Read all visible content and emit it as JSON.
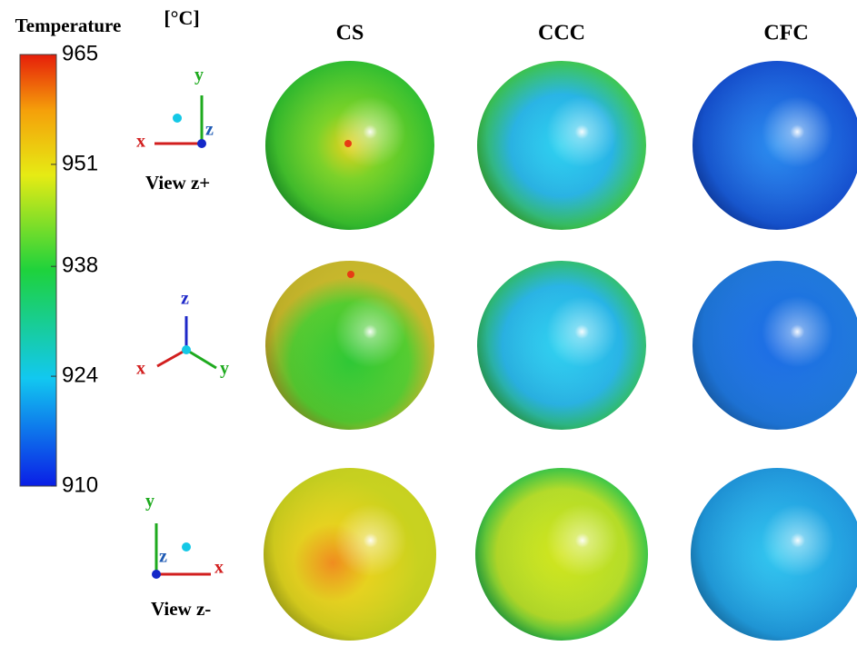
{
  "colorbar": {
    "title": "Temperature",
    "unit": "[°C]",
    "ticks": [
      965,
      951,
      938,
      924,
      910
    ]
  },
  "columns": [
    "CS",
    "CCC",
    "CFC"
  ],
  "rows": [
    {
      "view": "View z+",
      "axes": {
        "x": "x",
        "y": "y",
        "z": "z"
      }
    },
    {
      "axes": {
        "x": "x",
        "y": "y",
        "z": "z"
      }
    },
    {
      "view": "View z-",
      "axes": {
        "x": "x",
        "y": "y",
        "z": "z"
      }
    }
  ]
}
